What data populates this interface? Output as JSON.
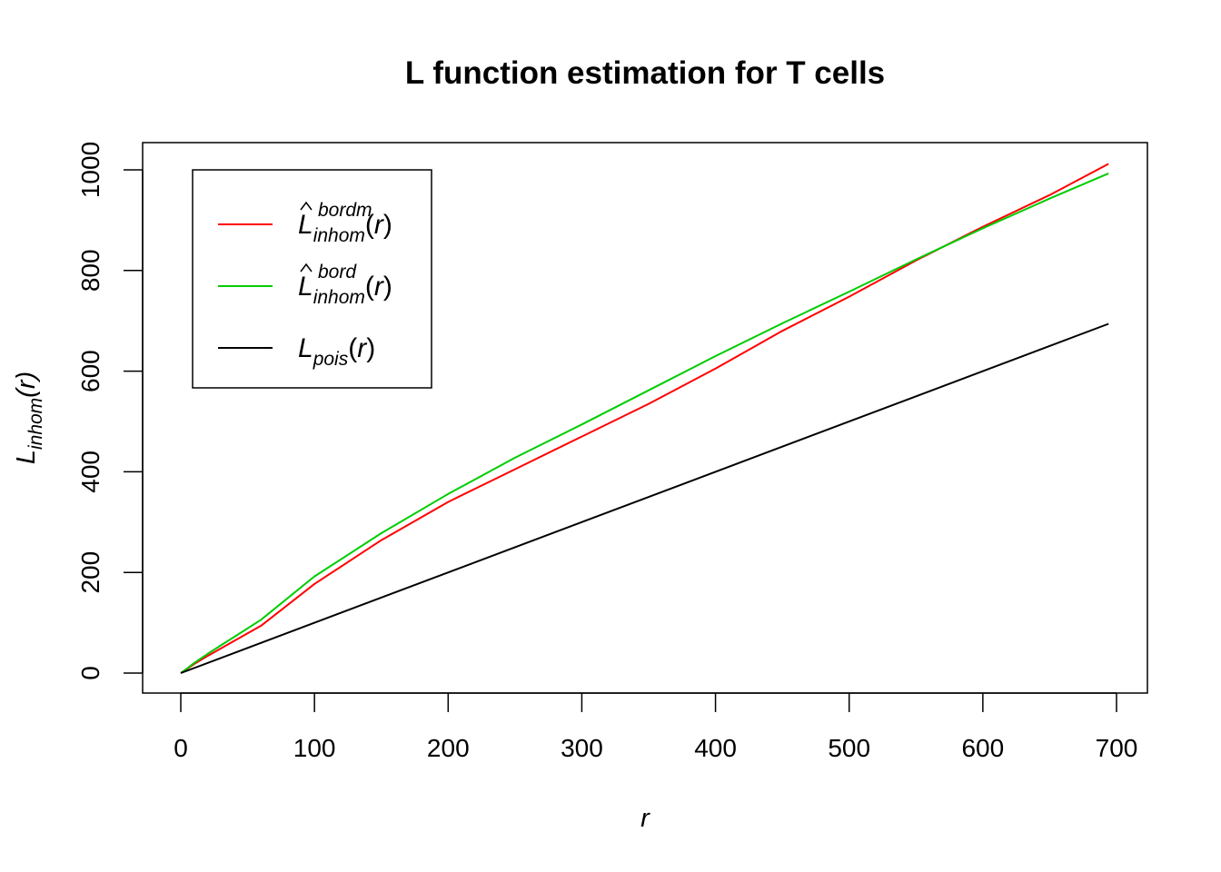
{
  "chart_data": {
    "type": "line",
    "title": "L function estimation for T cells",
    "xlabel": "r",
    "ylabel": {
      "main": "L",
      "sub": "inhom",
      "arg": "r"
    },
    "xlim": [
      0,
      700
    ],
    "ylim": [
      0,
      1000
    ],
    "x_ticks": [
      "0",
      "100",
      "200",
      "300",
      "400",
      "500",
      "600",
      "700"
    ],
    "y_ticks": [
      "0",
      "200",
      "400",
      "600",
      "800",
      "1000"
    ],
    "legend_position": "top-left",
    "series": [
      {
        "name": "L̂^bordm_inhom(r)",
        "legend": {
          "main": "L",
          "sup": "bordm",
          "sub": "inhom",
          "arg": "r"
        },
        "color": "#ff0000",
        "x": [
          0,
          5,
          10,
          20,
          40,
          60,
          100,
          150,
          200,
          250,
          300,
          350,
          400,
          450,
          500,
          550,
          600,
          650,
          694
        ],
        "y": [
          0,
          9,
          18,
          34,
          64,
          94,
          177,
          264,
          340,
          405,
          470,
          535,
          605,
          680,
          748,
          820,
          887,
          950,
          1012
        ]
      },
      {
        "name": "L̂^bord_inhom(r)",
        "legend": {
          "main": "L",
          "sup": "bord",
          "sub": "inhom",
          "arg": "r"
        },
        "color": "#00cc00",
        "x": [
          0,
          5,
          10,
          20,
          40,
          60,
          100,
          150,
          200,
          250,
          300,
          350,
          400,
          450,
          500,
          550,
          600,
          650,
          694
        ],
        "y": [
          0,
          10,
          20,
          38,
          72,
          106,
          192,
          278,
          356,
          428,
          494,
          562,
          630,
          695,
          758,
          822,
          884,
          943,
          993
        ]
      },
      {
        "name": "L_pois(r)",
        "legend": {
          "main": "L",
          "sup": "",
          "sub": "pois",
          "arg": "r"
        },
        "color": "#000000",
        "x": [
          0,
          694
        ],
        "y": [
          0,
          694
        ]
      }
    ]
  }
}
